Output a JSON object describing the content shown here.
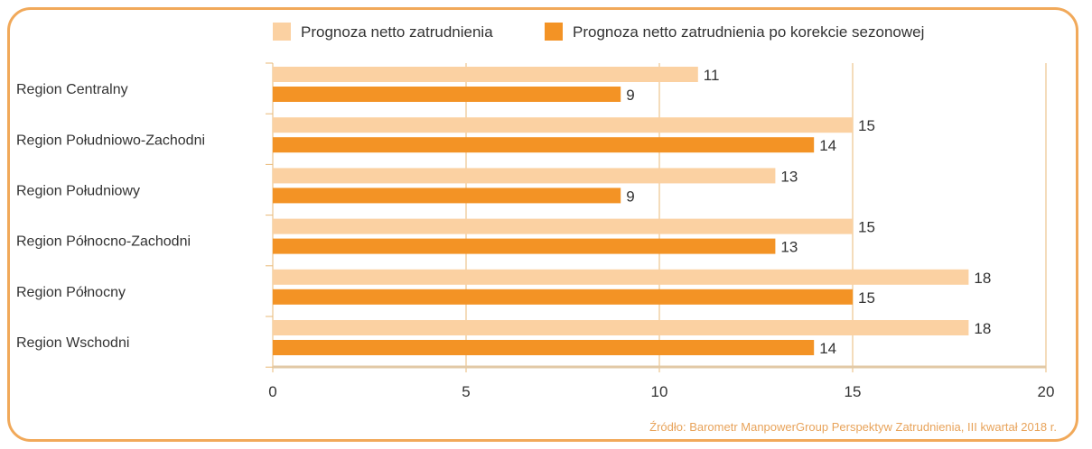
{
  "chart_data": {
    "type": "bar",
    "orientation": "horizontal",
    "categories": [
      "Region Centralny",
      "Region Południowo-Zachodni",
      "Region Południowy",
      "Region Północno-Zachodni",
      "Region Północny",
      "Region Wschodni"
    ],
    "series": [
      {
        "name": "Prognoza netto zatrudnienia",
        "values": [
          11,
          15,
          13,
          15,
          18,
          18
        ],
        "color": "#fbd1a2"
      },
      {
        "name": "Prognoza netto zatrudnienia po korekcie sezonowej",
        "values": [
          9,
          14,
          9,
          13,
          15,
          14
        ],
        "color": "#f39325"
      }
    ],
    "xticks": [
      0,
      5,
      10,
      15,
      20
    ],
    "xlim": [
      0,
      20
    ],
    "grid": true,
    "legend": "top",
    "source": "Źródło: Barometr ManpowerGroup Perspektyw Zatrudnienia, III kwartał 2018 r.",
    "colors": {
      "frame": "#f1a95a",
      "grid": "#e9b877",
      "axis": "#e2c9a6",
      "text": "#333333",
      "source": "#e8a35a"
    }
  }
}
